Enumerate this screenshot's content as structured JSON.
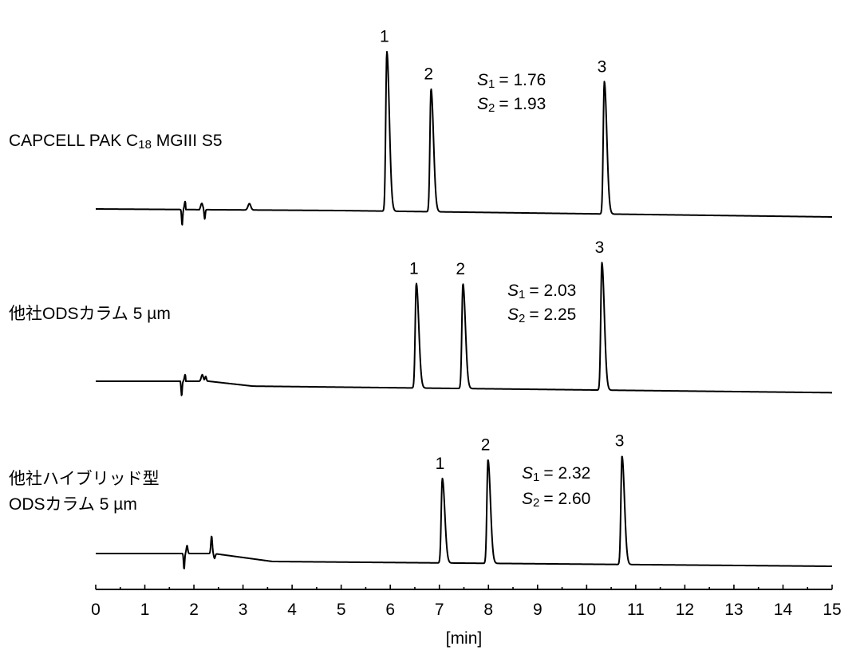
{
  "chart_data": {
    "type": "line",
    "xlabel": "[min]",
    "xlim": [
      0,
      15
    ],
    "x_ticks": [
      "0",
      "1",
      "2",
      "3",
      "4",
      "5",
      "6",
      "7",
      "8",
      "9",
      "10",
      "11",
      "12",
      "13",
      "14",
      "15"
    ],
    "series": [
      {
        "name_lines": [
          "CAPCELL PAK C18 MGIII S5"
        ],
        "name_parts": [
          {
            "text": "CAPCELL PAK C",
            "sub": false
          },
          {
            "text": "18",
            "sub": true
          },
          {
            "text": " MGIII S5",
            "sub": false
          }
        ],
        "baseline": [
          [
            0,
            0
          ],
          [
            5,
            -1
          ],
          [
            15,
            -5
          ]
        ],
        "peaks": [
          {
            "label": "1",
            "rt": 5.93,
            "height": 100
          },
          {
            "label": "2",
            "rt": 6.83,
            "height": 77
          },
          {
            "label": "3",
            "rt": 10.36,
            "height": 83
          }
        ],
        "resolution": [
          {
            "label": "S",
            "sub": "1",
            "value": "= 1.76"
          },
          {
            "label": "S",
            "sub": "2",
            "value": "= 1.93"
          }
        ]
      },
      {
        "name_lines": [
          "他社ODSカラム 5 µm"
        ],
        "baseline": [
          [
            0,
            0
          ],
          [
            2.3,
            0
          ],
          [
            3.2,
            -3
          ],
          [
            15,
            -7
          ]
        ],
        "peaks": [
          {
            "label": "1",
            "rt": 6.53,
            "height": 64
          },
          {
            "label": "2",
            "rt": 7.48,
            "height": 64
          },
          {
            "label": "3",
            "rt": 10.31,
            "height": 78
          }
        ],
        "resolution": [
          {
            "label": "S",
            "sub": "1",
            "value": "= 2.03"
          },
          {
            "label": "S",
            "sub": "2",
            "value": "= 2.25"
          }
        ]
      },
      {
        "name_lines": [
          "他社ハイブリッド型",
          "ODSカラム 5 µm"
        ],
        "baseline": [
          [
            0,
            0
          ],
          [
            2.4,
            0
          ],
          [
            3.6,
            -5
          ],
          [
            15,
            -8
          ]
        ],
        "peaks": [
          {
            "label": "1",
            "rt": 7.06,
            "height": 53
          },
          {
            "label": "2",
            "rt": 7.99,
            "height": 65
          },
          {
            "label": "3",
            "rt": 10.72,
            "height": 68
          }
        ],
        "resolution": [
          {
            "label": "S",
            "sub": "1",
            "value": "= 2.32"
          },
          {
            "label": "S",
            "sub": "2",
            "value": "= 2.60"
          }
        ]
      }
    ]
  }
}
